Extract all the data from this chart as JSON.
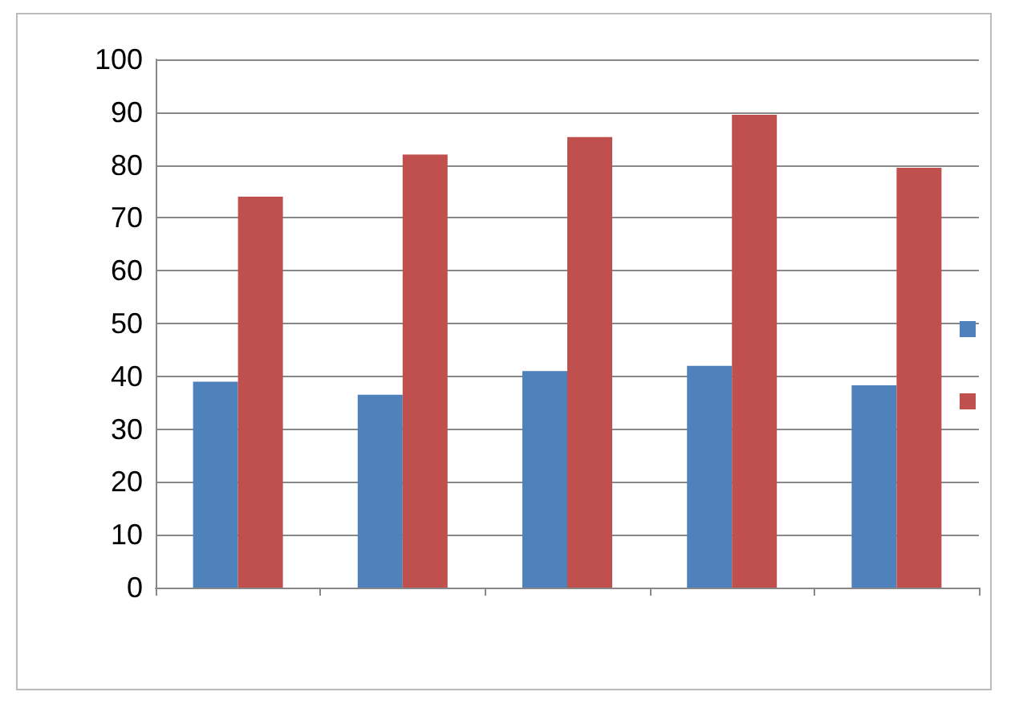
{
  "chart_data": {
    "type": "bar",
    "categories": [
      null,
      null,
      null,
      null,
      null
    ],
    "series": [
      {
        "color": "#4f81bd",
        "values": [
          39,
          36.5,
          41,
          42,
          38.3
        ]
      },
      {
        "color": "#c0504d",
        "values": [
          74,
          82,
          85.3,
          89.5,
          79.5
        ]
      }
    ],
    "ylim": [
      0,
      100
    ],
    "yticks": [
      0,
      10,
      20,
      30,
      40,
      50,
      60,
      70,
      80,
      90,
      100
    ],
    "grid": "y"
  }
}
